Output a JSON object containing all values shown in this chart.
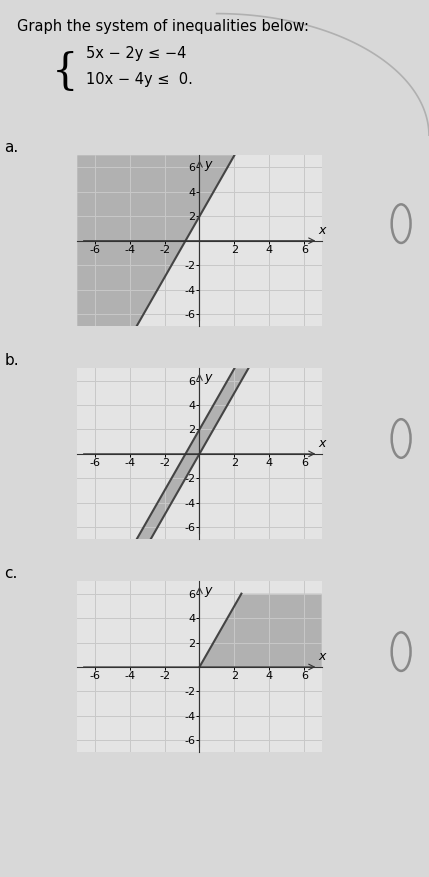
{
  "title_text": "Graph the system of inequalities below:",
  "xlim": [
    -7,
    7
  ],
  "ylim": [
    -7,
    7
  ],
  "xticks": [
    -6,
    -4,
    -2,
    2,
    4,
    6
  ],
  "yticks": [
    -6,
    -4,
    -2,
    2,
    4,
    6
  ],
  "grid_color": "#c8c8c8",
  "shade_color": "#909090",
  "shade_alpha": 0.6,
  "line_color": "#444444",
  "bg_color": "#e4e4e4",
  "page_bg": "#d8d8d8",
  "label_fontsize": 8,
  "axis_label_fontsize": 9,
  "title_fontsize": 10.5
}
